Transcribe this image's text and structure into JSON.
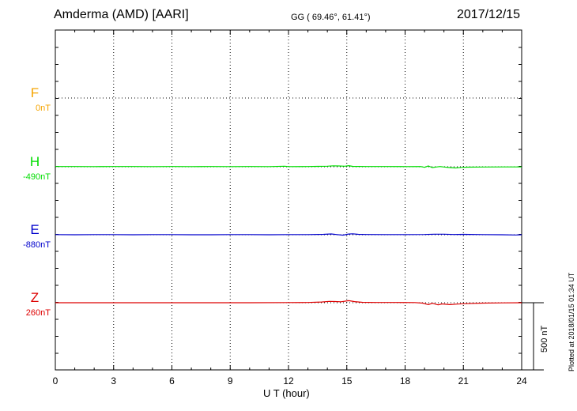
{
  "header": {
    "station": "Amderma (AMD)  [AARI]",
    "coords": "GG ( 69.46°,  61.41°)",
    "date": "2017/12/15"
  },
  "footer": {
    "plotted": "Plotted at 2018/01/15 01:34 UT"
  },
  "colors": {
    "F": "#f5a400",
    "H": "#00dd00",
    "E": "#0000cc",
    "Z": "#dd0000"
  },
  "chart_data": {
    "type": "line",
    "title": "",
    "xlabel": "U T (hour)",
    "ylabel": "",
    "xlim": [
      0,
      24
    ],
    "xticks": [
      "0",
      "3",
      "6",
      "9",
      "12",
      "15",
      "18",
      "21",
      "24"
    ],
    "scale_bar": {
      "label": "500 nT",
      "value": 500
    },
    "grid": true,
    "series": [
      {
        "name": "F",
        "baseline_label": "0nT",
        "color": "#f5a400",
        "points": []
      },
      {
        "name": "H",
        "baseline_label": "-490nT",
        "color": "#00dd00",
        "points": [
          [
            0,
            2
          ],
          [
            1,
            2
          ],
          [
            2,
            1
          ],
          [
            3,
            2
          ],
          [
            4,
            2
          ],
          [
            5,
            1
          ],
          [
            6,
            2
          ],
          [
            7,
            1
          ],
          [
            8,
            2
          ],
          [
            9,
            1
          ],
          [
            10,
            2
          ],
          [
            11,
            1
          ],
          [
            11.8,
            4
          ],
          [
            12,
            1
          ],
          [
            13,
            2
          ],
          [
            13.5,
            3
          ],
          [
            14,
            4
          ],
          [
            14.3,
            7
          ],
          [
            14.6,
            6
          ],
          [
            14.9,
            4
          ],
          [
            15.1,
            8
          ],
          [
            15.3,
            3
          ],
          [
            16,
            2
          ],
          [
            17,
            2
          ],
          [
            18,
            1
          ],
          [
            18.8,
            2
          ],
          [
            19,
            -4
          ],
          [
            19.2,
            6
          ],
          [
            19.4,
            -6
          ],
          [
            19.6,
            -2
          ],
          [
            19.8,
            2
          ],
          [
            20,
            -2
          ],
          [
            20.3,
            -6
          ],
          [
            20.6,
            -9
          ],
          [
            20.9,
            -5
          ],
          [
            21.2,
            -3
          ],
          [
            22,
            -2
          ],
          [
            23,
            -1
          ],
          [
            24,
            -1
          ]
        ]
      },
      {
        "name": "E",
        "baseline_label": "-880nT",
        "color": "#0000cc",
        "points": [
          [
            0,
            1
          ],
          [
            1,
            0
          ],
          [
            2,
            1
          ],
          [
            3,
            1
          ],
          [
            4,
            0
          ],
          [
            5,
            1
          ],
          [
            6,
            1
          ],
          [
            7,
            0
          ],
          [
            8,
            0
          ],
          [
            9,
            1
          ],
          [
            10,
            1
          ],
          [
            11,
            0
          ],
          [
            12,
            1
          ],
          [
            13,
            1
          ],
          [
            13.8,
            3
          ],
          [
            14.2,
            6
          ],
          [
            14.5,
            1
          ],
          [
            14.8,
            -3
          ],
          [
            15.1,
            5
          ],
          [
            15.3,
            7
          ],
          [
            15.6,
            3
          ],
          [
            16,
            2
          ],
          [
            17,
            1
          ],
          [
            18,
            1
          ],
          [
            19,
            2
          ],
          [
            19.5,
            4
          ],
          [
            20,
            4
          ],
          [
            20.5,
            2
          ],
          [
            21,
            3
          ],
          [
            22,
            1
          ],
          [
            23,
            0
          ],
          [
            23.7,
            -2
          ],
          [
            24,
            0
          ]
        ]
      },
      {
        "name": "Z",
        "baseline_label": "260nT",
        "color": "#dd0000",
        "points": [
          [
            0,
            0
          ],
          [
            2,
            0
          ],
          [
            4,
            0
          ],
          [
            6,
            0
          ],
          [
            8,
            0
          ],
          [
            10,
            0
          ],
          [
            12,
            1
          ],
          [
            13,
            2
          ],
          [
            13.7,
            5
          ],
          [
            14.1,
            10
          ],
          [
            14.4,
            9
          ],
          [
            14.7,
            7
          ],
          [
            15.1,
            15
          ],
          [
            15.4,
            8
          ],
          [
            15.8,
            3
          ],
          [
            16.5,
            2
          ],
          [
            17.5,
            2
          ],
          [
            18.5,
            1
          ],
          [
            18.9,
            -3
          ],
          [
            19.2,
            -14
          ],
          [
            19.4,
            -4
          ],
          [
            19.7,
            -16
          ],
          [
            19.9,
            -9
          ],
          [
            20.3,
            -14
          ],
          [
            20.7,
            -10
          ],
          [
            21.1,
            -7
          ],
          [
            22,
            -3
          ],
          [
            23,
            -1
          ],
          [
            24,
            0
          ]
        ]
      }
    ]
  }
}
